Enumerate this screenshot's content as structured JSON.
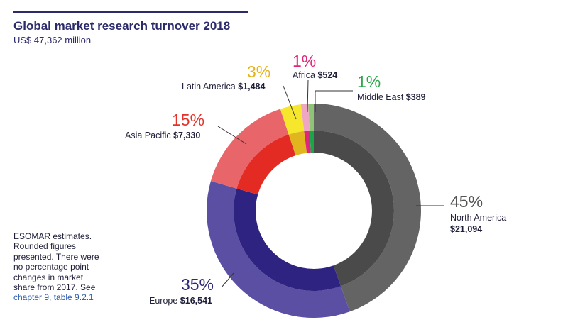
{
  "title": "Global market research turnover 2018",
  "subtitle": "US$ 47,362 million",
  "note": {
    "text": "ESOMAR estimates. Rounded figures presented. There were no percentage point changes in market share from 2017. See ",
    "link": "chapter 9, table 9.2.1"
  },
  "chart_data": {
    "type": "pie",
    "variant": "donut",
    "title": "Global market research turnover 2018",
    "subtitle": "US$ 47,362 million",
    "unit": "US$ million",
    "total": 47362,
    "segments": [
      {
        "name": "North America",
        "value": 21094,
        "value_label": "$21,094",
        "pct_label": "45%",
        "outer_color": "#646464",
        "inner_color": "#4a4a4a",
        "pct_color": "#555555"
      },
      {
        "name": "Europe",
        "value": 16541,
        "value_label": "$16,541",
        "pct_label": "35%",
        "outer_color": "#5a4fa3",
        "inner_color": "#2e2380",
        "pct_color": "#2e2a7a"
      },
      {
        "name": "Asia Pacific",
        "value": 7330,
        "value_label": "$7,330",
        "pct_label": "15%",
        "outer_color": "#e8656a",
        "inner_color": "#e32a23",
        "pct_color": "#e3322a"
      },
      {
        "name": "Latin America",
        "value": 1484,
        "value_label": "$1,484",
        "pct_label": "3%",
        "outer_color": "#f6e72c",
        "inner_color": "#e1b51d",
        "pct_color": "#e6b31f"
      },
      {
        "name": "Africa",
        "value": 524,
        "value_label": "$524",
        "pct_label": "1%",
        "outer_color": "#eea6c3",
        "inner_color": "#e0267c",
        "pct_color": "#e0267c"
      },
      {
        "name": "Middle East",
        "value": 389,
        "value_label": "$389",
        "pct_label": "1%",
        "outer_color": "#8fc476",
        "inner_color": "#1aa548",
        "pct_color": "#2aa84a"
      }
    ]
  }
}
